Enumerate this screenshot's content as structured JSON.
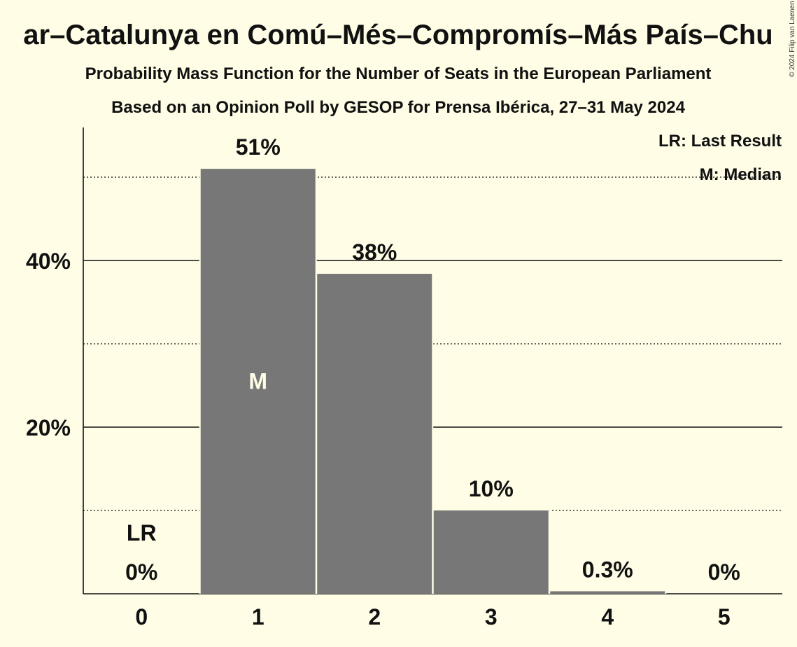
{
  "chart_data": {
    "type": "bar",
    "title": "ar–Catalunya en Comú–Més–Compromís–Más País–Chu",
    "subtitle": "Probability Mass Function for the Number of Seats in the European Parliament",
    "subtitle2": "Based on an Opinion Poll by GESOP for Prensa Ibérica, 27–31 May 2024",
    "categories": [
      "0",
      "1",
      "2",
      "3",
      "4",
      "5"
    ],
    "values": [
      0,
      51,
      38.4,
      10,
      0.3,
      0
    ],
    "value_labels": [
      "0%",
      "51%",
      "38%",
      "10%",
      "0.3%",
      "0%"
    ],
    "ylim": [
      0,
      56
    ],
    "yticks": [
      {
        "value": 20,
        "label": "20%"
      },
      {
        "value": 40,
        "label": "40%"
      }
    ],
    "minor_gridlines": [
      10,
      30,
      50
    ],
    "grid": true,
    "bar_color": "#777777",
    "background_color": "#FFFDE6",
    "last_result_index": 0,
    "last_result_label": "LR",
    "median_index": 1,
    "median_label": "M",
    "legend": {
      "placement": "top-right",
      "entries": [
        "LR: Last Result",
        "M: Median"
      ]
    },
    "copyright": "© 2024 Filip van Laenen"
  }
}
